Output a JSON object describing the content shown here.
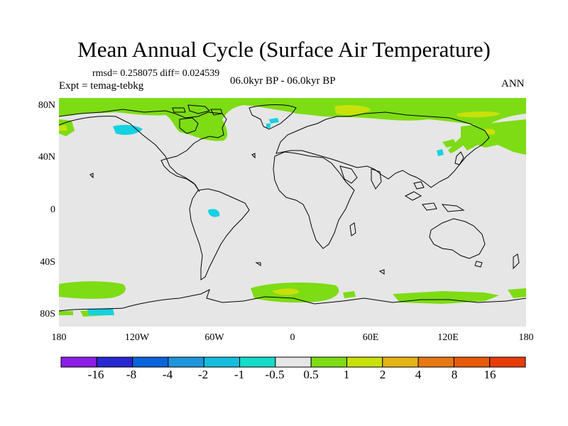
{
  "title": "Mean Annual Cycle (Surface Air Temperature)",
  "stats": "rmsd= 0.258075 diff= 0.024539",
  "experiment": "Expt = temag-tebkg",
  "period": "06.0kyr BP - 06.0kyr BP",
  "season": "ANN",
  "lat_labels": [
    "80N",
    "40N",
    "0",
    "40S",
    "80S"
  ],
  "lon_labels": [
    "180",
    "120W",
    "60W",
    "0",
    "60E",
    "120E",
    "180"
  ],
  "colorbar": {
    "labels": [
      "-16",
      "-8",
      "-4",
      "-2",
      "-1",
      "-0.5",
      "0.5",
      "1",
      "2",
      "4",
      "8",
      "16"
    ],
    "colors": [
      "#8c1ee6",
      "#2828d2",
      "#0a64dc",
      "#1e96dc",
      "#14bedc",
      "#14dcc8",
      "#e6e6e6",
      "#7ddc14",
      "#c8e10a",
      "#e6b414",
      "#e67814",
      "#e65a0a",
      "#e63c0a"
    ]
  },
  "colors": {
    "land_background": "#e6e6e6",
    "positive_small": "#7ddc14",
    "positive_mid": "#c8e10a",
    "negative_small": "#14d2e1",
    "coastline": "#000000"
  }
}
